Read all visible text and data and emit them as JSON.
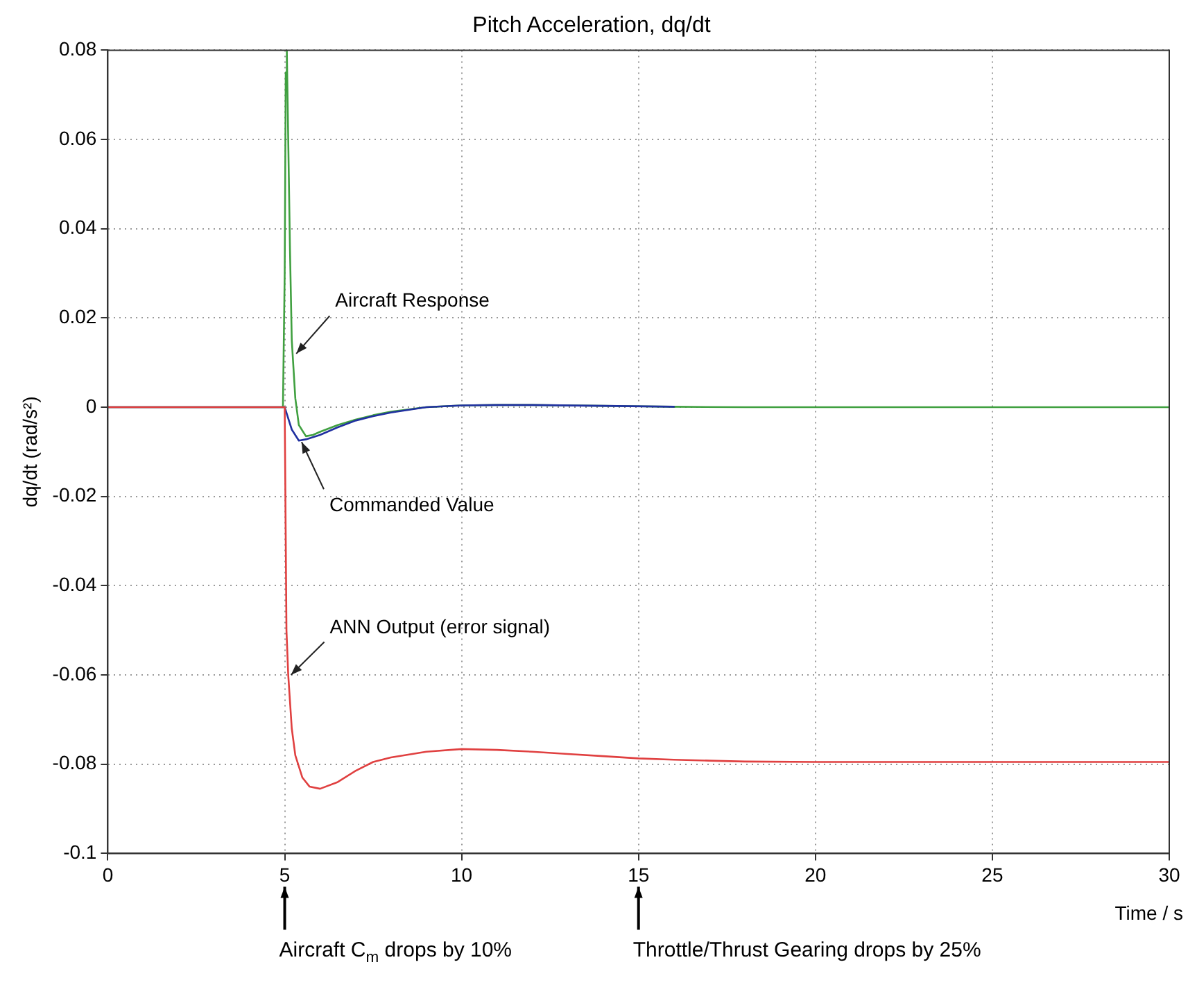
{
  "chart_data": {
    "type": "line",
    "title": "Pitch Acceleration, dq/dt",
    "xlabel": "Time / s",
    "ylabel": "dq/dt (rad/s²)",
    "xlim": [
      0,
      30
    ],
    "xticks": [
      0,
      5,
      10,
      15,
      20,
      25,
      30
    ],
    "ylim": [
      -0.1,
      0.08
    ],
    "yticks": [
      -0.1,
      -0.08,
      -0.06,
      -0.04,
      -0.02,
      0,
      0.02,
      0.04,
      0.06,
      0.08
    ],
    "grid": true,
    "marker": "none",
    "line_style": "solid",
    "series": [
      {
        "color": "#e04040",
        "x": [
          0,
          5,
          5.05,
          5.1,
          5.2,
          5.3,
          5.5,
          5.7,
          6,
          6.5,
          7,
          7.5,
          8,
          9,
          10,
          11,
          12,
          13,
          14,
          15,
          16,
          17,
          18,
          20,
          25,
          30
        ],
        "values": [
          0,
          0,
          -0.05,
          -0.06,
          -0.072,
          -0.078,
          -0.083,
          -0.085,
          -0.0855,
          -0.084,
          -0.0815,
          -0.0795,
          -0.0785,
          -0.0772,
          -0.0766,
          -0.0768,
          -0.0772,
          -0.0777,
          -0.0782,
          -0.0787,
          -0.079,
          -0.0792,
          -0.0794,
          -0.0795,
          -0.0795,
          -0.0795
        ]
      },
      {
        "color": "#2030a0",
        "x": [
          0,
          5,
          5.2,
          5.4,
          5.6,
          6,
          6.5,
          7,
          7.5,
          8,
          9,
          10,
          11,
          12,
          14,
          16
        ],
        "values": [
          0,
          0,
          -0.005,
          -0.0075,
          -0.0072,
          -0.0062,
          -0.0045,
          -0.003,
          -0.002,
          -0.0012,
          0,
          0.0004,
          0.0005,
          0.0005,
          0.0003,
          0.0001
        ]
      },
      {
        "color": "#40a040",
        "x": [
          0,
          4.95,
          5,
          5.03,
          5.06,
          5.1,
          5.15,
          5.2,
          5.3,
          5.4,
          5.6,
          5.8,
          6,
          6.5,
          7,
          7.5,
          8,
          9,
          10,
          11,
          12,
          13,
          14,
          15,
          16,
          18,
          20,
          25,
          30
        ],
        "values": [
          0,
          0,
          0.03,
          0.075,
          0.08,
          0.06,
          0.035,
          0.015,
          0.002,
          -0.004,
          -0.0065,
          -0.0062,
          -0.0055,
          -0.004,
          -0.0028,
          -0.0018,
          -0.001,
          0,
          0.0004,
          0.0005,
          0.0005,
          0.0004,
          0.0003,
          0.0002,
          0.0001,
          0,
          0,
          0,
          0
        ]
      }
    ],
    "annotations": [
      {
        "text": "Aircraft Response",
        "x": 5.25,
        "y": 0.012
      },
      {
        "text": "Commanded Value",
        "x": 5.4,
        "y": -0.0078
      },
      {
        "text": "ANN Output (error signal)",
        "x": 5.1,
        "y": -0.06
      },
      "Aircraft C$_{m}$ drops by 10%",
      "Throttle/Thrust Gearing drops by 25%"
    ]
  }
}
